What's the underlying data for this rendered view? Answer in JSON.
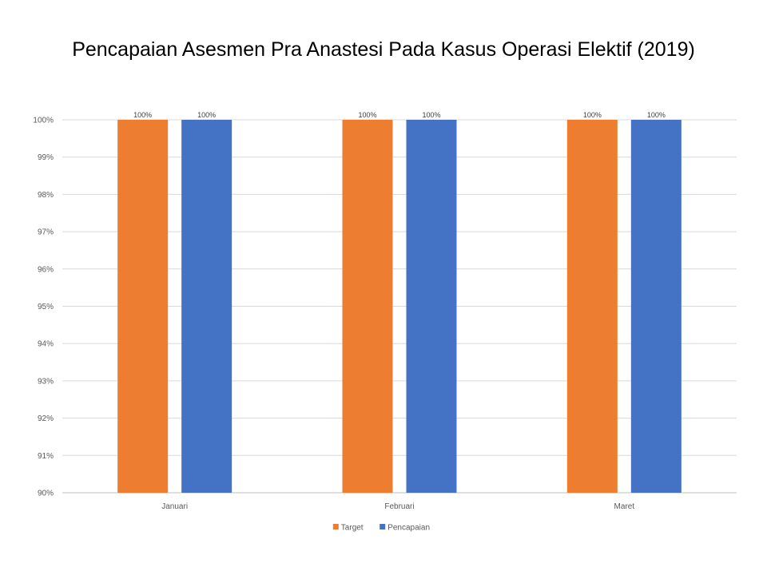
{
  "chart_data": {
    "type": "bar",
    "title": "Pencapaian Asesmen Pra Anastesi Pada Kasus Operasi Elektif (2019)",
    "categories": [
      "Januari",
      "Februari",
      "Maret"
    ],
    "series": [
      {
        "name": "Target",
        "color": "#ED7D31",
        "values": [
          100,
          100,
          100
        ],
        "labels": [
          "100%",
          "100%",
          "100%"
        ]
      },
      {
        "name": "Pencapaian",
        "color": "#4472C4",
        "values": [
          100,
          100,
          100
        ],
        "labels": [
          "100%",
          "100%",
          "100%"
        ]
      }
    ],
    "ylim": [
      90,
      100
    ],
    "yticks": [
      "90%",
      "91%",
      "92%",
      "93%",
      "94%",
      "95%",
      "96%",
      "97%",
      "98%",
      "99%",
      "100%"
    ],
    "xlabel": "",
    "ylabel": "",
    "grid": true,
    "legend": "bottom-center"
  }
}
